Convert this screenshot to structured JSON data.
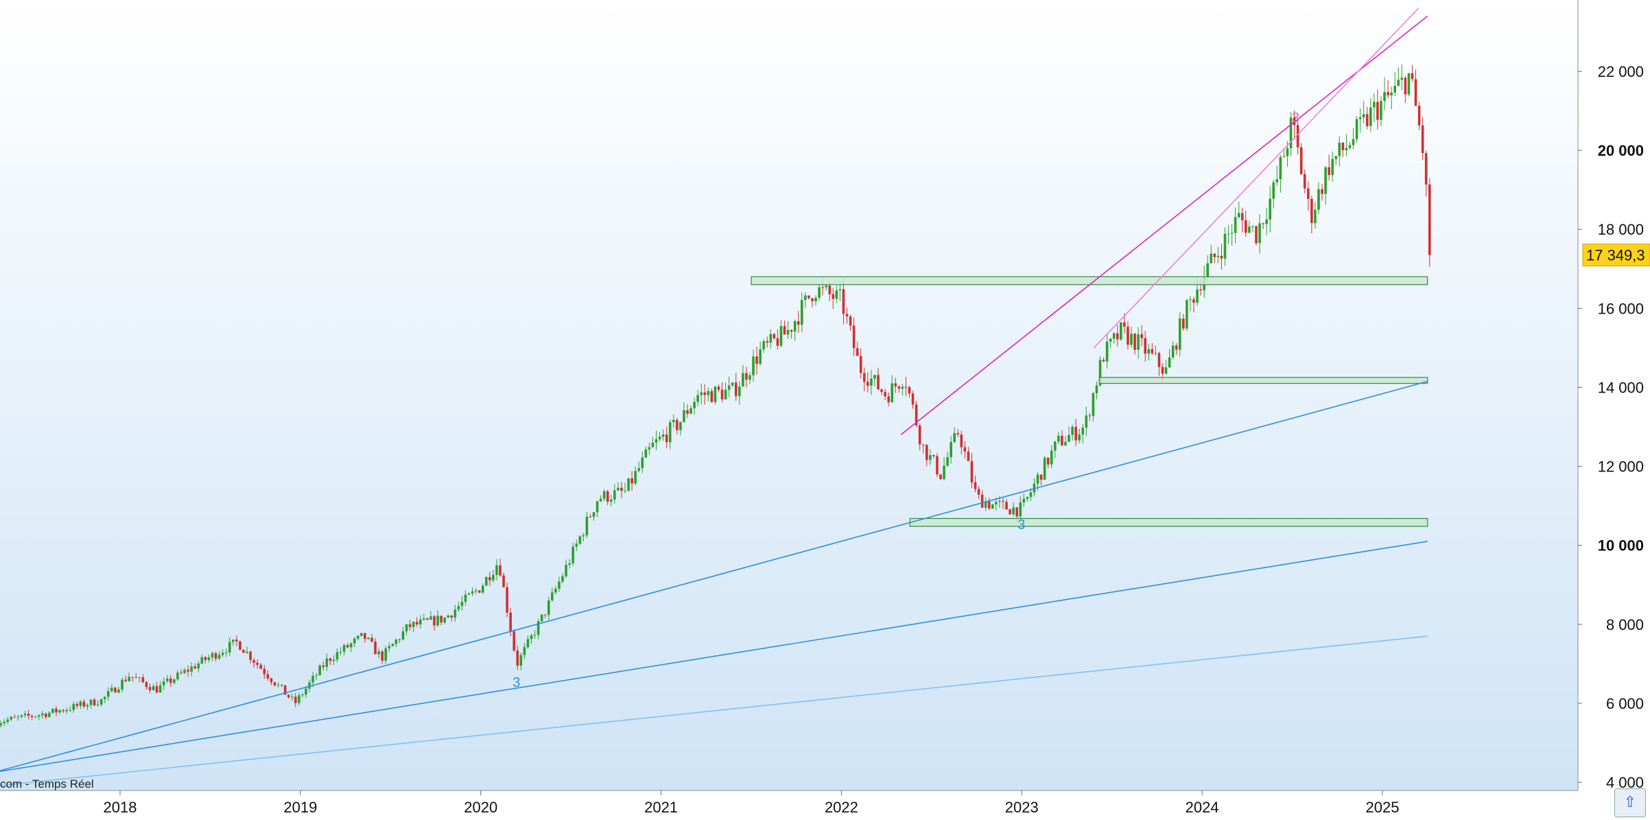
{
  "chart_data": {
    "type": "candlestick",
    "credit": "com - Temps Réel",
    "last_price_label": "17 349,3",
    "last_price": 17349.3,
    "ylim": [
      4000,
      23500
    ],
    "xlim": [
      2017.3,
      2025.8
    ],
    "y_ticks": [
      {
        "value": 4000,
        "label": "4 000",
        "bold": false
      },
      {
        "value": 6000,
        "label": "6 000",
        "bold": false
      },
      {
        "value": 8000,
        "label": "8 000",
        "bold": false
      },
      {
        "value": 10000,
        "label": "10 000",
        "bold": true
      },
      {
        "value": 12000,
        "label": "12 000",
        "bold": false
      },
      {
        "value": 14000,
        "label": "14 000",
        "bold": false
      },
      {
        "value": 16000,
        "label": "16 000",
        "bold": false
      },
      {
        "value": 18000,
        "label": "18 000",
        "bold": false
      },
      {
        "value": 20000,
        "label": "20 000",
        "bold": true
      },
      {
        "value": 22000,
        "label": "22 000",
        "bold": false
      }
    ],
    "x_ticks": [
      {
        "value": 2018,
        "label": "2018"
      },
      {
        "value": 2019,
        "label": "2019"
      },
      {
        "value": 2020,
        "label": "2020"
      },
      {
        "value": 2021,
        "label": "2021"
      },
      {
        "value": 2022,
        "label": "2022"
      },
      {
        "value": 2023,
        "label": "2023"
      },
      {
        "value": 2024,
        "label": "2024"
      },
      {
        "value": 2025,
        "label": "2025"
      }
    ],
    "price_path": [
      [
        2017.3,
        5520
      ],
      [
        2017.6,
        5750
      ],
      [
        2017.9,
        6080
      ],
      [
        2018.05,
        6700
      ],
      [
        2018.2,
        6350
      ],
      [
        2018.45,
        7050
      ],
      [
        2018.65,
        7550
      ],
      [
        2018.8,
        6800
      ],
      [
        2018.97,
        6000
      ],
      [
        2019.15,
        7100
      ],
      [
        2019.35,
        7700
      ],
      [
        2019.45,
        7150
      ],
      [
        2019.6,
        7950
      ],
      [
        2019.8,
        8150
      ],
      [
        2020.0,
        8950
      ],
      [
        2020.1,
        9600
      ],
      [
        2020.2,
        6980
      ],
      [
        2020.35,
        8250
      ],
      [
        2020.5,
        9700
      ],
      [
        2020.65,
        11200
      ],
      [
        2020.8,
        11350
      ],
      [
        2020.95,
        12500
      ],
      [
        2021.1,
        13100
      ],
      [
        2021.2,
        13800
      ],
      [
        2021.4,
        13900
      ],
      [
        2021.55,
        14900
      ],
      [
        2021.7,
        15400
      ],
      [
        2021.85,
        16500
      ],
      [
        2022.0,
        16200
      ],
      [
        2022.1,
        14500
      ],
      [
        2022.25,
        13800
      ],
      [
        2022.35,
        14300
      ],
      [
        2022.45,
        12500
      ],
      [
        2022.55,
        11800
      ],
      [
        2022.65,
        12900
      ],
      [
        2022.75,
        11200
      ],
      [
        2022.85,
        11000
      ],
      [
        2023.0,
        10900
      ],
      [
        2023.1,
        11800
      ],
      [
        2023.2,
        12600
      ],
      [
        2023.35,
        13000
      ],
      [
        2023.45,
        14800
      ],
      [
        2023.55,
        15400
      ],
      [
        2023.65,
        15100
      ],
      [
        2023.8,
        14400
      ],
      [
        2023.9,
        15800
      ],
      [
        2024.0,
        16800
      ],
      [
        2024.1,
        17500
      ],
      [
        2024.2,
        18300
      ],
      [
        2024.3,
        17900
      ],
      [
        2024.4,
        19000
      ],
      [
        2024.5,
        20700
      ],
      [
        2024.6,
        18300
      ],
      [
        2024.7,
        19600
      ],
      [
        2024.8,
        20100
      ],
      [
        2024.95,
        21000
      ],
      [
        2025.05,
        21400
      ],
      [
        2025.15,
        21900
      ],
      [
        2025.22,
        20200
      ],
      [
        2025.27,
        17349.3
      ]
    ],
    "zones": [
      {
        "x1": 2021.5,
        "x2": 2025.25,
        "y1": 16600,
        "y2": 16800
      },
      {
        "x1": 2023.43,
        "x2": 2025.25,
        "y1": 14100,
        "y2": 14250
      },
      {
        "x1": 2022.38,
        "x2": 2025.25,
        "y1": 10480,
        "y2": 10680
      }
    ],
    "trendlines": [
      {
        "x1": 2022.33,
        "y1": 12800,
        "x2": 2025.25,
        "y2": 23400,
        "color": "#e020c0"
      },
      {
        "x1": 2023.4,
        "y1": 15000,
        "x2": 2025.2,
        "y2": 23600,
        "color": "#f080e0"
      },
      {
        "x1": 2017.3,
        "y1": 4250,
        "x2": 2025.25,
        "y2": 14150,
        "color": "#2e8ee0"
      },
      {
        "x1": 2017.3,
        "y1": 4250,
        "x2": 2025.25,
        "y2": 10100,
        "color": "#2e8ee0"
      },
      {
        "x1": 2017.3,
        "y1": 3900,
        "x2": 2025.25,
        "y2": 7700,
        "color": "#80bff0"
      }
    ],
    "markers": [
      {
        "x": 2020.2,
        "y": 6550,
        "label": "3",
        "color": "#2e8ee0"
      },
      {
        "x": 2023.0,
        "y": 10550,
        "label": "3",
        "color": "#2e8ee0"
      },
      {
        "x": 2024.52,
        "y": 20850,
        "label": "3",
        "color": "#e060d0"
      }
    ],
    "colors": {
      "up": "#2ca02c",
      "down": "#d03030",
      "bg_top": "#ffffff",
      "bg_bottom": "#cfe4f6",
      "zone_fill": "#cde8d2",
      "zone_stroke": "#2b8a3e",
      "badge": "#ffd21a"
    }
  }
}
